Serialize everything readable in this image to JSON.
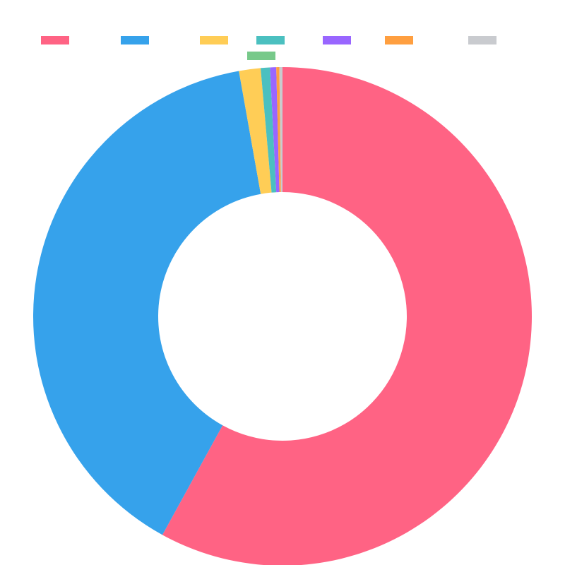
{
  "chart_data": {
    "type": "pie",
    "variant": "doughnut",
    "title": "",
    "legend": {
      "position": "top",
      "show_labels": false
    },
    "series": [
      {
        "values": [
          58.0,
          39.2,
          1.4,
          0.6,
          0.4,
          0.2,
          0.2,
          0.0
        ]
      }
    ],
    "colors": [
      "#ff6384",
      "#36a2eb",
      "#ffcd56",
      "#4bc0c0",
      "#9966ff",
      "#ff9f40",
      "#c9cbcf",
      "#77c98a"
    ]
  }
}
